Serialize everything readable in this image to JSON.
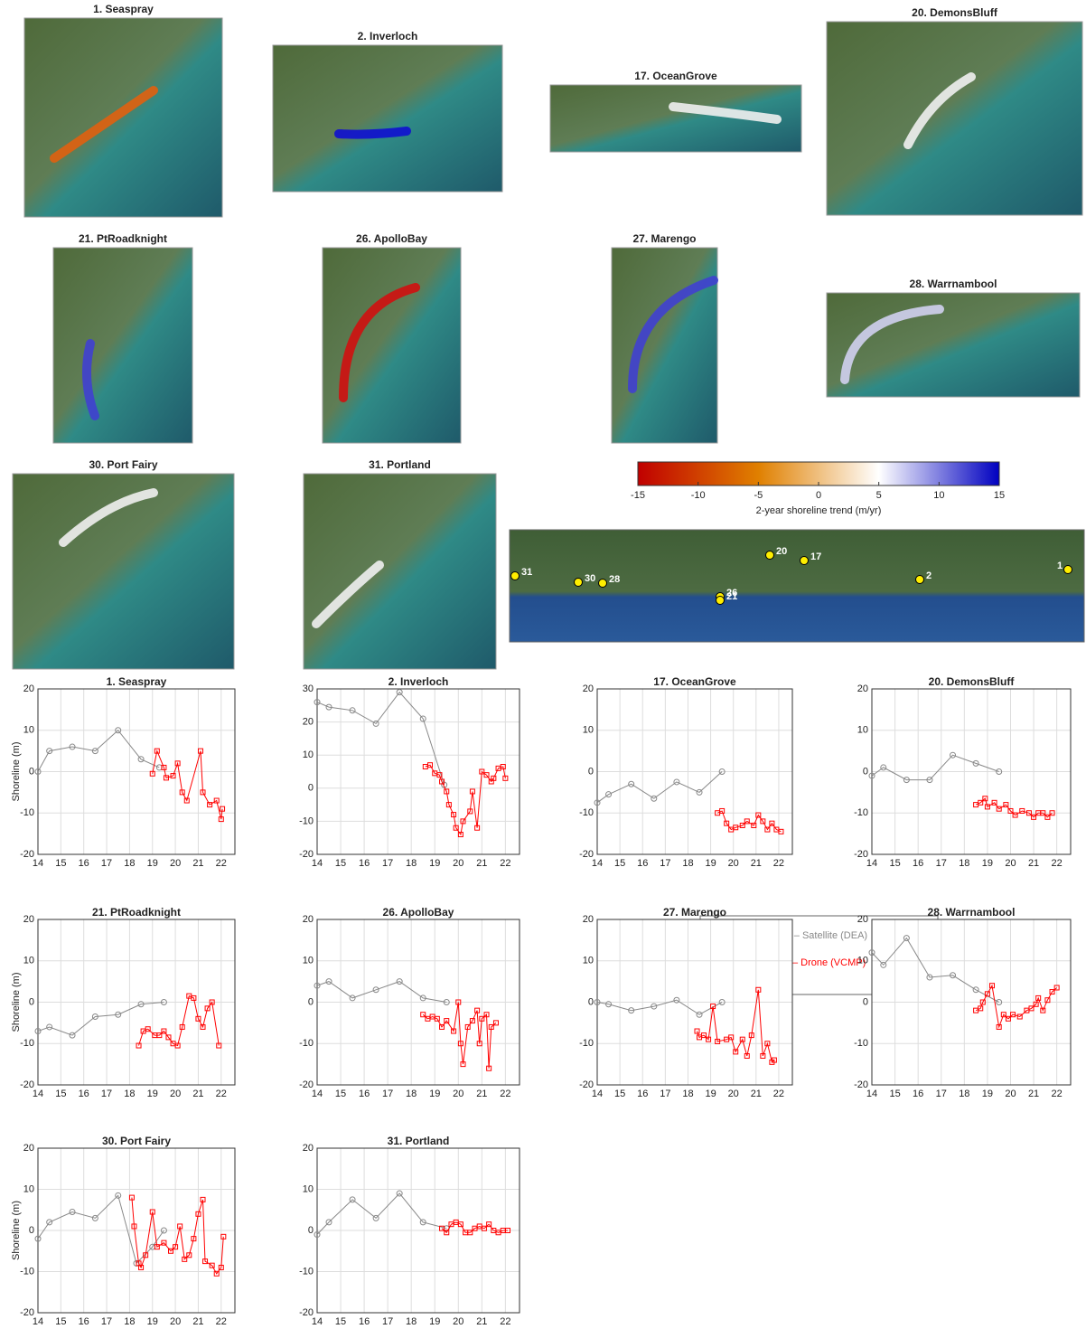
{
  "maps": [
    {
      "title": "1. Seaspray"
    },
    {
      "title": "2. Inverloch"
    },
    {
      "title": "17. OceanGrove"
    },
    {
      "title": "20. DemonsBluff"
    },
    {
      "title": "21. PtRoadknight"
    },
    {
      "title": "26. ApolloBay"
    },
    {
      "title": "27. Marengo"
    },
    {
      "title": "28. Warrnambool"
    },
    {
      "title": "30. Port Fairy"
    },
    {
      "title": "31. Portland"
    }
  ],
  "colorbar": {
    "label": "2-year shoreline trend (m/yr)",
    "lim": [
      -15,
      15
    ],
    "ticks": [
      -15,
      -10,
      -5,
      0,
      5,
      10,
      15
    ],
    "colors": [
      "#c00000",
      "#e08000",
      "#ffffff",
      "#0000c0"
    ]
  },
  "location_map": {
    "sites": [
      "31",
      "30",
      "28",
      "26",
      "21",
      "20",
      "17",
      "2",
      "1"
    ]
  },
  "legend": {
    "entries": [
      {
        "text": "Grey – Satellite (DEA)",
        "color": "#888888"
      },
      {
        "text": "Red – Drone (VCMP)",
        "color": "#ff0000"
      }
    ]
  },
  "chart_data": [
    {
      "type": "line",
      "title": "1. Seaspray",
      "ylabel": "Shoreline (m)",
      "xlim": [
        14,
        22.6
      ],
      "xticks": [
        14,
        15,
        16,
        17,
        18,
        19,
        20,
        21,
        22
      ],
      "ylim": [
        -20,
        20
      ],
      "yticks": [
        -20,
        -10,
        0,
        10,
        20
      ],
      "grid": true,
      "series": [
        {
          "color": "#888888",
          "marker": "circle",
          "x": [
            14,
            14.5,
            15.5,
            16.5,
            17.5,
            18.5,
            19.3
          ],
          "values": [
            0,
            5,
            6,
            5,
            10,
            3,
            1
          ]
        },
        {
          "color": "#ff0000",
          "marker": "square",
          "x": [
            19.0,
            19.2,
            19.5,
            19.6,
            19.9,
            20.1,
            20.3,
            20.5,
            21.1,
            21.2,
            21.5,
            21.8,
            22.0,
            22.05
          ],
          "values": [
            -0.5,
            5,
            1,
            -1.5,
            -1,
            2,
            -5,
            -7,
            5,
            -5,
            -8,
            -7,
            -11.5,
            -9
          ]
        }
      ]
    },
    {
      "type": "line",
      "title": "2. Inverloch",
      "xlim": [
        14,
        22.6
      ],
      "xticks": [
        14,
        15,
        16,
        17,
        18,
        19,
        20,
        21,
        22
      ],
      "ylim": [
        -20,
        30
      ],
      "yticks": [
        -20,
        -10,
        0,
        10,
        20,
        30
      ],
      "grid": true,
      "series": [
        {
          "color": "#888888",
          "marker": "circle",
          "x": [
            14,
            14.5,
            15.5,
            16.5,
            17.5,
            18.5,
            19.4
          ],
          "values": [
            26,
            24.5,
            23.5,
            19.5,
            29,
            21,
            1
          ]
        },
        {
          "color": "#ff0000",
          "marker": "square",
          "x": [
            18.6,
            18.8,
            19.0,
            19.2,
            19.3,
            19.5,
            19.6,
            19.8,
            19.9,
            20.1,
            20.2,
            20.5,
            20.6,
            20.8,
            21.0,
            21.2,
            21.4,
            21.5,
            21.7,
            21.9,
            22.0
          ],
          "values": [
            6.5,
            7,
            4.5,
            4,
            2,
            -1,
            -5,
            -8,
            -12,
            -14,
            -10,
            -7,
            -1,
            -12,
            5,
            4,
            2,
            3,
            6,
            6.5,
            3
          ]
        }
      ]
    },
    {
      "type": "line",
      "title": "17. OceanGrove",
      "xlim": [
        14,
        22.6
      ],
      "xticks": [
        14,
        15,
        16,
        17,
        18,
        19,
        20,
        21,
        22
      ],
      "ylim": [
        -20,
        20
      ],
      "yticks": [
        -20,
        -10,
        0,
        10,
        20
      ],
      "grid": true,
      "series": [
        {
          "color": "#888888",
          "marker": "circle",
          "x": [
            14,
            14.5,
            15.5,
            16.5,
            17.5,
            18.5,
            19.5
          ],
          "values": [
            -7.5,
            -5.5,
            -3,
            -6.5,
            -2.5,
            -5,
            0
          ]
        },
        {
          "color": "#ff0000",
          "marker": "square",
          "x": [
            19.3,
            19.5,
            19.7,
            19.9,
            20.1,
            20.4,
            20.6,
            20.9,
            21.1,
            21.3,
            21.5,
            21.7,
            21.9,
            22.1
          ],
          "values": [
            -10,
            -9.5,
            -12.5,
            -14,
            -13.5,
            -13,
            -12,
            -13,
            -10.5,
            -12,
            -14,
            -12.5,
            -14,
            -14.5
          ]
        }
      ]
    },
    {
      "type": "line",
      "title": "20. DemonsBluff",
      "xlim": [
        14,
        22.6
      ],
      "xticks": [
        14,
        15,
        16,
        17,
        18,
        19,
        20,
        21,
        22
      ],
      "ylim": [
        -20,
        20
      ],
      "yticks": [
        -20,
        -10,
        0,
        10,
        20
      ],
      "grid": true,
      "series": [
        {
          "color": "#888888",
          "marker": "circle",
          "x": [
            14,
            14.5,
            15.5,
            16.5,
            17.5,
            18.5,
            19.5
          ],
          "values": [
            -1,
            1,
            -2,
            -2,
            4,
            2,
            0
          ]
        },
        {
          "color": "#ff0000",
          "marker": "square",
          "x": [
            18.5,
            18.7,
            18.9,
            19.0,
            19.3,
            19.5,
            19.8,
            20.0,
            20.2,
            20.5,
            20.8,
            21.0,
            21.2,
            21.4,
            21.6,
            21.8
          ],
          "values": [
            -8,
            -7.5,
            -6.5,
            -8.5,
            -7.5,
            -9,
            -8,
            -9.5,
            -10.5,
            -9.5,
            -10,
            -11,
            -10,
            -10,
            -11,
            -10
          ]
        }
      ]
    },
    {
      "type": "line",
      "title": "21. PtRoadknight",
      "ylabel": "Shoreline (m)",
      "xlim": [
        14,
        22.6
      ],
      "xticks": [
        14,
        15,
        16,
        17,
        18,
        19,
        20,
        21,
        22
      ],
      "ylim": [
        -20,
        20
      ],
      "yticks": [
        -20,
        -10,
        0,
        10,
        20
      ],
      "grid": true,
      "series": [
        {
          "color": "#888888",
          "marker": "circle",
          "x": [
            14,
            14.5,
            15.5,
            16.5,
            17.5,
            18.5,
            19.5
          ],
          "values": [
            -7,
            -6,
            -8,
            -3.5,
            -3,
            -0.5,
            0
          ]
        },
        {
          "color": "#ff0000",
          "marker": "square",
          "x": [
            18.4,
            18.6,
            18.8,
            19.1,
            19.3,
            19.5,
            19.7,
            19.9,
            20.1,
            20.3,
            20.6,
            20.8,
            21.0,
            21.2,
            21.4,
            21.6,
            21.9
          ],
          "values": [
            -10.5,
            -7,
            -6.5,
            -8,
            -8,
            -7,
            -8.5,
            -10,
            -10.5,
            -6,
            1.5,
            1,
            -4,
            -6,
            -1.5,
            0,
            -10.5
          ]
        }
      ]
    },
    {
      "type": "line",
      "title": "26. ApolloBay",
      "xlim": [
        14,
        22.6
      ],
      "xticks": [
        14,
        15,
        16,
        17,
        18,
        19,
        20,
        21,
        22
      ],
      "ylim": [
        -20,
        20
      ],
      "yticks": [
        -20,
        -10,
        0,
        10,
        20
      ],
      "grid": true,
      "series": [
        {
          "color": "#888888",
          "marker": "circle",
          "x": [
            14,
            14.5,
            15.5,
            16.5,
            17.5,
            18.5,
            19.5
          ],
          "values": [
            4,
            5,
            1,
            3,
            5,
            1,
            0
          ]
        },
        {
          "color": "#ff0000",
          "marker": "square",
          "x": [
            18.5,
            18.7,
            18.9,
            19.1,
            19.3,
            19.5,
            19.8,
            20.0,
            20.1,
            20.2,
            20.4,
            20.6,
            20.8,
            20.9,
            21.0,
            21.2,
            21.3,
            21.4,
            21.6
          ],
          "values": [
            -3,
            -4,
            -3.5,
            -4,
            -6,
            -4.5,
            -7,
            0,
            -10,
            -15,
            -6,
            -4.5,
            -2,
            -10,
            -4,
            -3,
            -16,
            -6,
            -5
          ]
        }
      ]
    },
    {
      "type": "line",
      "title": "27. Marengo",
      "xlim": [
        14,
        22.6
      ],
      "xticks": [
        14,
        15,
        16,
        17,
        18,
        19,
        20,
        21,
        22
      ],
      "ylim": [
        -20,
        20
      ],
      "yticks": [
        -20,
        -10,
        0,
        10,
        20
      ],
      "grid": true,
      "series": [
        {
          "color": "#888888",
          "marker": "circle",
          "x": [
            14,
            14.5,
            15.5,
            16.5,
            17.5,
            18.5,
            19.5
          ],
          "values": [
            0,
            -0.5,
            -2,
            -1,
            0.5,
            -3,
            0
          ]
        },
        {
          "color": "#ff0000",
          "marker": "square",
          "x": [
            18.4,
            18.5,
            18.7,
            18.9,
            19.1,
            19.3,
            19.7,
            19.9,
            20.1,
            20.4,
            20.6,
            20.8,
            21.1,
            21.3,
            21.5,
            21.7,
            21.8
          ],
          "values": [
            -7,
            -8.5,
            -8,
            -9,
            -1,
            -9.5,
            -9,
            -8.5,
            -12,
            -9,
            -13,
            -8,
            3,
            -13,
            -10,
            -14.5,
            -14
          ]
        }
      ]
    },
    {
      "type": "line",
      "title": "28. Warrnambool",
      "xlim": [
        14,
        22.6
      ],
      "xticks": [
        14,
        15,
        16,
        17,
        18,
        19,
        20,
        21,
        22
      ],
      "ylim": [
        -20,
        20
      ],
      "yticks": [
        -20,
        -10,
        0,
        10,
        20
      ],
      "grid": true,
      "series": [
        {
          "color": "#888888",
          "marker": "circle",
          "x": [
            14,
            14.5,
            15.5,
            16.5,
            17.5,
            18.5,
            19.5
          ],
          "values": [
            12,
            9,
            15.5,
            6,
            6.5,
            3,
            0
          ]
        },
        {
          "color": "#ff0000",
          "marker": "square",
          "x": [
            18.5,
            18.7,
            18.8,
            19.0,
            19.2,
            19.5,
            19.7,
            19.9,
            20.1,
            20.4,
            20.7,
            20.9,
            21.1,
            21.2,
            21.4,
            21.6,
            21.8,
            22.0
          ],
          "values": [
            -2,
            -1.5,
            0,
            2,
            4,
            -6,
            -3,
            -4,
            -3,
            -3.5,
            -2,
            -1.5,
            -0.5,
            1,
            -2,
            0.5,
            2.5,
            3.5
          ]
        }
      ]
    },
    {
      "type": "line",
      "title": "30. Port Fairy",
      "ylabel": "Shoreline (m)",
      "xlim": [
        14,
        22.6
      ],
      "xticks": [
        14,
        15,
        16,
        17,
        18,
        19,
        20,
        21,
        22
      ],
      "ylim": [
        -20,
        20
      ],
      "yticks": [
        -20,
        -10,
        0,
        10,
        20
      ],
      "grid": true,
      "series": [
        {
          "color": "#888888",
          "marker": "circle",
          "x": [
            14,
            14.5,
            15.5,
            16.5,
            17.5,
            18.3,
            19.0,
            19.5
          ],
          "values": [
            -2,
            2,
            4.5,
            3,
            8.5,
            -8,
            -4,
            0
          ]
        },
        {
          "color": "#ff0000",
          "marker": "square",
          "x": [
            18.1,
            18.2,
            18.4,
            18.5,
            18.7,
            19.0,
            19.2,
            19.5,
            19.8,
            20.0,
            20.2,
            20.4,
            20.6,
            20.8,
            21.0,
            21.2,
            21.3,
            21.6,
            21.8,
            22.0,
            22.1
          ],
          "values": [
            8,
            1,
            -8,
            -9,
            -6,
            4.5,
            -4,
            -3,
            -5,
            -4,
            1,
            -7,
            -6,
            -2,
            4,
            7.5,
            -7.5,
            -8.5,
            -10.5,
            -9,
            -1.5
          ]
        }
      ]
    },
    {
      "type": "line",
      "title": "31. Portland",
      "xlim": [
        14,
        22.6
      ],
      "xticks": [
        14,
        15,
        16,
        17,
        18,
        19,
        20,
        21,
        22
      ],
      "ylim": [
        -20,
        20
      ],
      "yticks": [
        -20,
        -10,
        0,
        10,
        20
      ],
      "grid": true,
      "series": [
        {
          "color": "#888888",
          "marker": "circle",
          "x": [
            14,
            14.5,
            15.5,
            16.5,
            17.5,
            18.5,
            19.5
          ],
          "values": [
            -1,
            2,
            7.5,
            3,
            9,
            2,
            0.5
          ]
        },
        {
          "color": "#ff0000",
          "marker": "square",
          "x": [
            19.3,
            19.5,
            19.7,
            19.9,
            20.1,
            20.3,
            20.5,
            20.7,
            20.9,
            21.1,
            21.3,
            21.5,
            21.7,
            21.9,
            22.1
          ],
          "values": [
            0.5,
            -0.5,
            1.5,
            2,
            1.5,
            -0.5,
            -0.5,
            0.5,
            1,
            0.5,
            1.5,
            0,
            -0.5,
            0,
            0
          ]
        }
      ]
    }
  ]
}
